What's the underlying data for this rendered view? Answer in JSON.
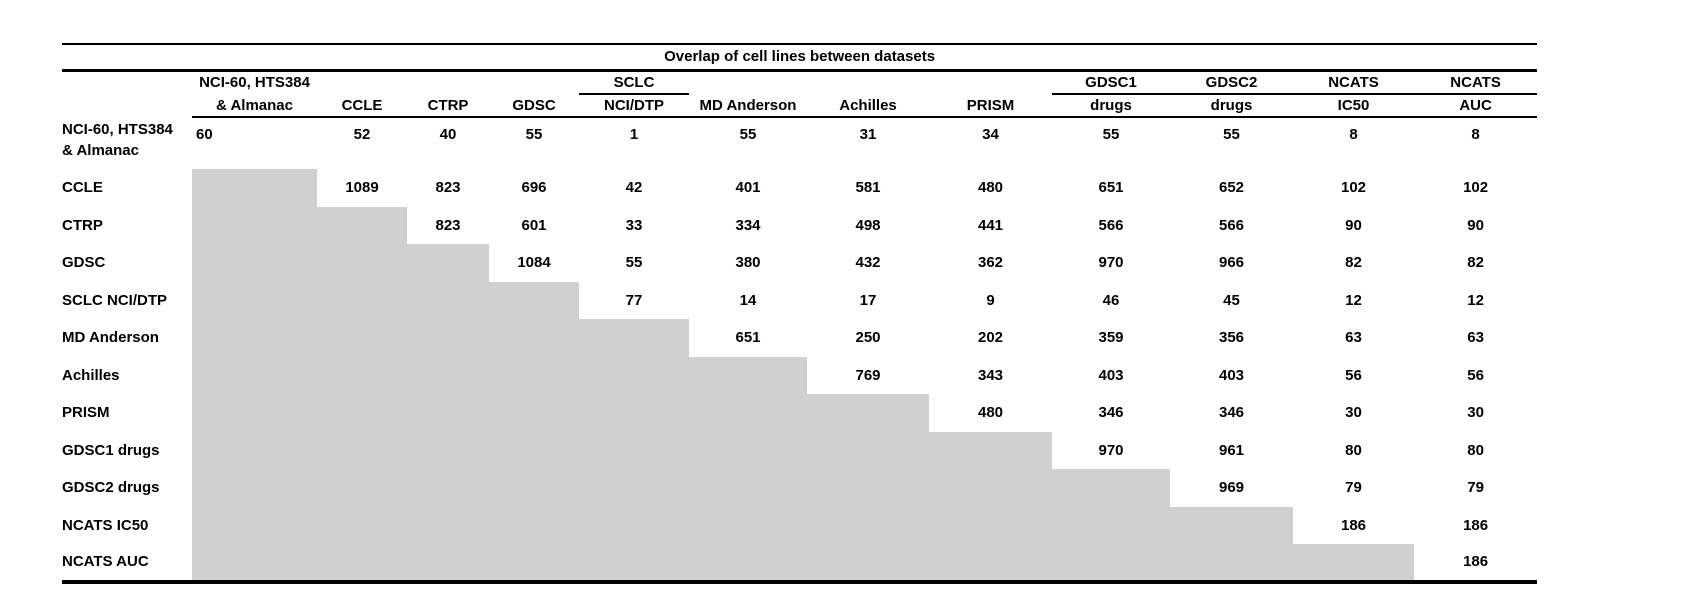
{
  "figure": {
    "title": "Overlap of cell lines between datasets",
    "shaded_color": "#d0d0d0",
    "text_color": "#000000",
    "columns": [
      {
        "top": "NCI-60, HTS384",
        "bottom": "& Almanac",
        "group_rule": false
      },
      {
        "top": "",
        "bottom": "CCLE",
        "group_rule": false
      },
      {
        "top": "",
        "bottom": "CTRP",
        "group_rule": false
      },
      {
        "top": "",
        "bottom": "GDSC",
        "group_rule": false
      },
      {
        "top": "SCLC",
        "bottom": "NCI/DTP",
        "group_rule": true
      },
      {
        "top": "",
        "bottom": "MD Anderson",
        "group_rule": false
      },
      {
        "top": "",
        "bottom": "Achilles",
        "group_rule": false
      },
      {
        "top": "",
        "bottom": "PRISM",
        "group_rule": false
      },
      {
        "top": "GDSC1",
        "bottom": "drugs",
        "group_rule": true
      },
      {
        "top": "GDSC2",
        "bottom": "drugs",
        "group_rule": true
      },
      {
        "top": "NCATS",
        "bottom": "IC50",
        "group_rule": true
      },
      {
        "top": "NCATS",
        "bottom": "AUC",
        "group_rule": true
      }
    ],
    "rows": [
      {
        "label_lines": [
          "NCI-60, HTS384",
          "& Almanac"
        ],
        "values": [
          60,
          52,
          40,
          55,
          1,
          55,
          31,
          34,
          55,
          55,
          8,
          8
        ]
      },
      {
        "label_lines": [
          "CCLE"
        ],
        "values": [
          null,
          1089,
          823,
          696,
          42,
          401,
          581,
          480,
          651,
          652,
          102,
          102
        ]
      },
      {
        "label_lines": [
          "CTRP"
        ],
        "values": [
          null,
          null,
          823,
          601,
          33,
          334,
          498,
          441,
          566,
          566,
          90,
          90
        ]
      },
      {
        "label_lines": [
          "GDSC"
        ],
        "values": [
          null,
          null,
          null,
          1084,
          55,
          380,
          432,
          362,
          970,
          966,
          82,
          82
        ]
      },
      {
        "label_lines": [
          "SCLC NCI/DTP"
        ],
        "values": [
          null,
          null,
          null,
          null,
          77,
          14,
          17,
          9,
          46,
          45,
          12,
          12
        ]
      },
      {
        "label_lines": [
          "MD Anderson"
        ],
        "values": [
          null,
          null,
          null,
          null,
          null,
          651,
          250,
          202,
          359,
          356,
          63,
          63
        ]
      },
      {
        "label_lines": [
          "Achilles"
        ],
        "values": [
          null,
          null,
          null,
          null,
          null,
          null,
          769,
          343,
          403,
          403,
          56,
          56
        ]
      },
      {
        "label_lines": [
          "PRISM"
        ],
        "values": [
          null,
          null,
          null,
          null,
          null,
          null,
          null,
          480,
          346,
          346,
          30,
          30
        ]
      },
      {
        "label_lines": [
          "GDSC1 drugs"
        ],
        "values": [
          null,
          null,
          null,
          null,
          null,
          null,
          null,
          null,
          970,
          961,
          80,
          80
        ]
      },
      {
        "label_lines": [
          "GDSC2 drugs"
        ],
        "values": [
          null,
          null,
          null,
          null,
          null,
          null,
          null,
          null,
          null,
          969,
          79,
          79
        ]
      },
      {
        "label_lines": [
          "NCATS IC50"
        ],
        "values": [
          null,
          null,
          null,
          null,
          null,
          null,
          null,
          null,
          null,
          null,
          186,
          186
        ]
      },
      {
        "label_lines": [
          "NCATS AUC"
        ],
        "values": [
          null,
          null,
          null,
          null,
          null,
          null,
          null,
          null,
          null,
          null,
          null,
          186
        ]
      }
    ]
  }
}
